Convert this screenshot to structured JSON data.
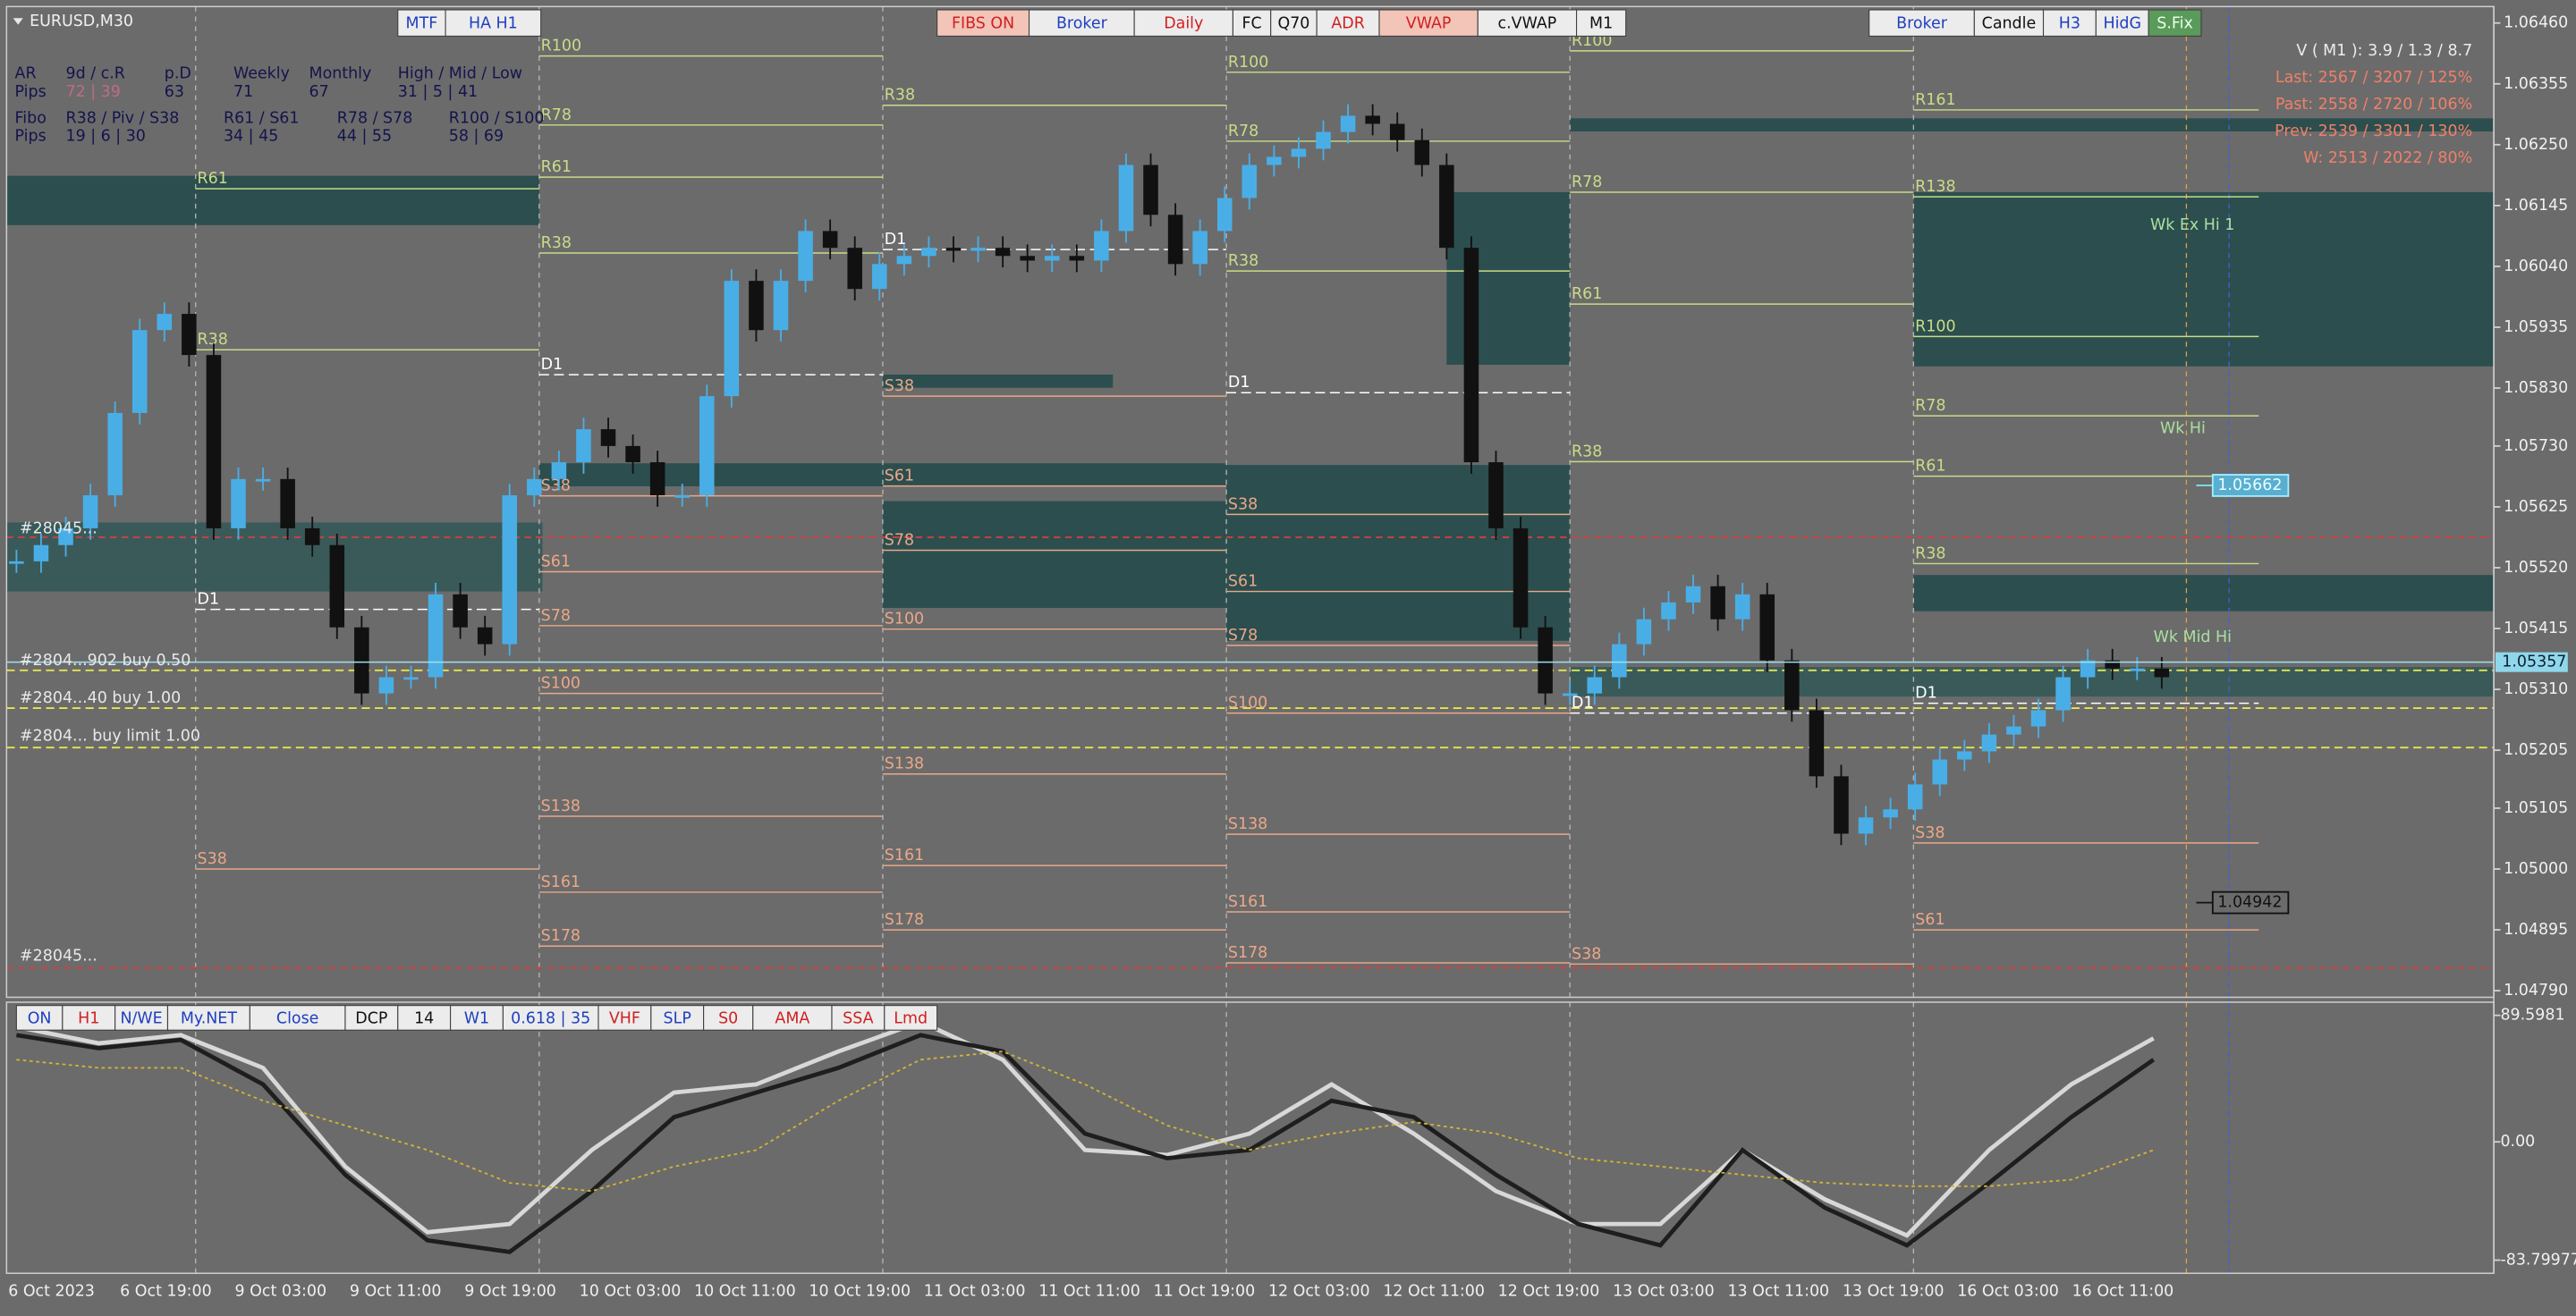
{
  "symbol": "EURUSD,M30",
  "toolbar_top_left": [
    "MTF",
    "HA H1"
  ],
  "toolbar_top": [
    "FIBS ON",
    "Broker",
    "Daily",
    "FC",
    "Q70",
    "ADR",
    "VWAP",
    "c.VWAP",
    "M1"
  ],
  "toolbar_top_right": [
    "Broker",
    "Candle",
    "H3",
    "HidG",
    "S.Fix"
  ],
  "toolbar_bottom": [
    "ON",
    "H1",
    "N/WE",
    "My.NET",
    "Close",
    "DCP",
    "14",
    "W1",
    "0.618 | 35",
    "VHF",
    "SLP",
    "S0",
    "AMA",
    "SSA",
    "Lmd"
  ],
  "stats": {
    "rows": [
      [
        "AR",
        "9d / c.R",
        "p.D",
        "Weekly",
        "Monthly",
        "High / Mid / Low"
      ],
      [
        "Pips",
        "72 | 39",
        63,
        71,
        67,
        "31 | 5 | 41"
      ],
      [
        "Fibo",
        "R38 / Piv / S38",
        "R61 / S61",
        "R78 / S78",
        "R100 / S100"
      ],
      [
        "Pips",
        "19 | 6 | 30",
        "34 | 45",
        "44 | 55",
        "58 | 69"
      ]
    ]
  },
  "info_panel": [
    "V ( M1 ): 3.9 / 1.3 / 8.7",
    "Last: 2567 / 3207 / 125%",
    "Past: 2558 / 2720 / 106%",
    "Prev: 2539 / 3301 / 130%",
    "W: 2513 / 2022 / 80%"
  ],
  "price_axis": {
    "ylim": [
      1.0479,
      1.0646
    ],
    "yticks": [
      {
        "value": 1.0646,
        "label": "1.06460"
      },
      {
        "value": 1.06355,
        "label": "1.06355"
      },
      {
        "value": 1.0625,
        "label": "1.06250"
      },
      {
        "value": 1.06145,
        "label": "1.06145"
      },
      {
        "value": 1.0604,
        "label": "1.06040"
      },
      {
        "value": 1.05935,
        "label": "1.05935"
      },
      {
        "value": 1.0583,
        "label": "1.05830"
      },
      {
        "value": 1.0573,
        "label": "1.05730"
      },
      {
        "value": 1.05625,
        "label": "1.05625"
      },
      {
        "value": 1.0552,
        "label": "1.05520"
      },
      {
        "value": 1.05415,
        "label": "1.05415"
      },
      {
        "value": 1.0531,
        "label": "1.05310"
      },
      {
        "value": 1.05205,
        "label": "1.05205"
      },
      {
        "value": 1.05105,
        "label": "1.05105"
      },
      {
        "value": 1.05,
        "label": "1.05000"
      },
      {
        "value": 1.04895,
        "label": "1.04895"
      },
      {
        "value": 1.0479,
        "label": "1.04790"
      }
    ],
    "current_price": 1.05357,
    "price_tags": [
      1.05662,
      1.04942
    ]
  },
  "orders": [
    "#2804...902 buy 0.50",
    "#2804...40 buy 1.00",
    "#2804... buy limit 1.00",
    "#28045...",
    "#28045..."
  ],
  "weekly_labels": [
    "Wk Ex Hi 1",
    "Wk Hi",
    "Wk Mid Hi"
  ],
  "pivot_days": [
    {
      "levels": [
        {
          "label": "R61",
          "value": 1.06174
        },
        {
          "label": "R38",
          "value": 1.05896
        },
        {
          "label": "D1",
          "value": 1.05448
        },
        {
          "label": "S38",
          "value": 1.05
        }
      ]
    },
    {
      "levels": [
        {
          "label": "R100",
          "value": 1.06403
        },
        {
          "label": "R78",
          "value": 1.06284
        },
        {
          "label": "R61",
          "value": 1.06194
        },
        {
          "label": "R38",
          "value": 1.06063
        },
        {
          "label": "D1",
          "value": 1.05853
        },
        {
          "label": "S38",
          "value": 1.05644
        },
        {
          "label": "S61",
          "value": 1.05513
        },
        {
          "label": "S78",
          "value": 1.0542
        },
        {
          "label": "S100",
          "value": 1.05303
        },
        {
          "label": "S138",
          "value": 1.05091
        },
        {
          "label": "S161",
          "value": 1.0496
        },
        {
          "label": "S178",
          "value": 1.04867
        }
      ]
    },
    {
      "levels": [
        {
          "label": "R38",
          "value": 1.06318
        },
        {
          "label": "D1",
          "value": 1.06069
        },
        {
          "label": "S38",
          "value": 1.05816
        },
        {
          "label": "S61",
          "value": 1.05661
        },
        {
          "label": "S78",
          "value": 1.0555
        },
        {
          "label": "S100",
          "value": 1.05414
        },
        {
          "label": "S138",
          "value": 1.05164
        },
        {
          "label": "S161",
          "value": 1.05006
        },
        {
          "label": "S178",
          "value": 1.04895
        }
      ]
    },
    {
      "levels": [
        {
          "label": "R100",
          "value": 1.06375
        },
        {
          "label": "R78",
          "value": 1.06256
        },
        {
          "label": "R38",
          "value": 1.06032
        },
        {
          "label": "D1",
          "value": 1.05822
        },
        {
          "label": "S38",
          "value": 1.05612
        },
        {
          "label": "S61",
          "value": 1.05479
        },
        {
          "label": "S78",
          "value": 1.05386
        },
        {
          "label": "S100",
          "value": 1.05269
        },
        {
          "label": "S138",
          "value": 1.0506
        },
        {
          "label": "S161",
          "value": 1.04926
        },
        {
          "label": "S178",
          "value": 1.04838
        }
      ]
    },
    {
      "levels": [
        {
          "label": "R100",
          "value": 1.06412
        },
        {
          "label": "R78",
          "value": 1.06168
        },
        {
          "label": "R61",
          "value": 1.05975
        },
        {
          "label": "R38",
          "value": 1.05703
        },
        {
          "label": "D1",
          "value": 1.05269
        },
        {
          "label": "S38",
          "value": 1.04836
        }
      ]
    },
    {
      "levels": [
        {
          "label": "R161",
          "value": 1.0631
        },
        {
          "label": "R138",
          "value": 1.0616
        },
        {
          "label": "R100",
          "value": 1.05919
        },
        {
          "label": "R78",
          "value": 1.05782
        },
        {
          "label": "R61",
          "value": 1.05678
        },
        {
          "label": "R38",
          "value": 1.05527
        },
        {
          "label": "D1",
          "value": 1.05286
        },
        {
          "label": "S38",
          "value": 1.05045
        },
        {
          "label": "S61",
          "value": 1.04895
        }
      ]
    }
  ],
  "price_series": {
    "type": "candlestick",
    "up_color": "#4aaee6",
    "down_color": "#111111",
    "closes": [
      1.05531,
      1.05559,
      1.05588,
      1.05645,
      1.05787,
      1.0593,
      1.05958,
      1.05887,
      1.05588,
      1.05673,
      1.05673,
      1.05588,
      1.05559,
      1.05417,
      1.05303,
      1.05331,
      1.05331,
      1.05474,
      1.05417,
      1.05388,
      1.05645,
      1.05673,
      1.05702,
      1.05759,
      1.0573,
      1.05702,
      1.05645,
      1.05645,
      1.05816,
      1.06015,
      1.0593,
      1.06015,
      1.06101,
      1.06072,
      1.06001,
      1.06044,
      1.06058,
      1.06072,
      1.06067,
      1.06072,
      1.06058,
      1.0605,
      1.06058,
      1.0605,
      1.06101,
      1.06215,
      1.06129,
      1.06044,
      1.06101,
      1.06158,
      1.06215,
      1.06229,
      1.06243,
      1.06272,
      1.063,
      1.06286,
      1.06258,
      1.06215,
      1.06072,
      1.05702,
      1.05588,
      1.05417,
      1.05303,
      1.05303,
      1.05331,
      1.05388,
      1.05431,
      1.0546,
      1.05488,
      1.05431,
      1.05474,
      1.0536,
      1.05274,
      1.0516,
      1.05061,
      1.05089,
      1.05103,
      1.05146,
      1.05189,
      1.05203,
      1.05232,
      1.05246,
      1.05274,
      1.05331,
      1.0536,
      1.05346,
      1.05346,
      1.05331
    ]
  },
  "oscillator": {
    "ylim": [
      -83.79977,
      89.5981
    ],
    "yticks": [
      89.5981,
      {
        "value": 0,
        "label": "0.00"
      },
      -83.79977
    ],
    "series": [
      {
        "color": "#d8d8d8",
        "values": [
          81.5,
          69.8,
          75.6,
          52.4,
          -17.5,
          -64.0,
          -58.2,
          -5.8,
          34.9,
          40.7,
          64.0,
          85.0,
          58.2,
          -5.8,
          -9.3,
          5.8,
          40.7,
          5.8,
          -34.9,
          -58.2,
          -58.2,
          -5.8,
          -40.7,
          -66.3,
          -5.8,
          40.7,
          73.3
        ]
      },
      {
        "color": "#1e1e1e",
        "values": [
          75.6,
          66.3,
          72.2,
          40.7,
          -23.3,
          -69.8,
          -78.0,
          -34.9,
          17.5,
          34.9,
          52.4,
          75.6,
          64.0,
          5.8,
          -11.6,
          -5.8,
          29.1,
          17.5,
          -23.3,
          -58.2,
          -73.3,
          -5.8,
          -46.6,
          -73.3,
          -29.1,
          17.5,
          58.2
        ]
      },
      {
        "color": "#d2b436",
        "values": [
          58.2,
          52.4,
          52.4,
          29.1,
          11.6,
          -5.8,
          -29.1,
          -34.9,
          -17.5,
          -5.8,
          29.1,
          58.2,
          64.0,
          40.7,
          11.6,
          -5.8,
          5.8,
          14.0,
          5.8,
          -11.6,
          -17.5,
          -23.3,
          -29.1,
          -31.4,
          -31.4,
          -26.8,
          -5.8
        ]
      }
    ]
  },
  "time_axis": [
    "6 Oct 2023",
    "6 Oct 19:00",
    "9 Oct 03:00",
    "9 Oct 11:00",
    "9 Oct 19:00",
    "10 Oct 03:00",
    "10 Oct 11:00",
    "10 Oct 19:00",
    "11 Oct 03:00",
    "11 Oct 11:00",
    "11 Oct 19:00",
    "12 Oct 03:00",
    "12 Oct 11:00",
    "12 Oct 19:00",
    "13 Oct 03:00",
    "13 Oct 11:00",
    "13 Oct 19:00",
    "16 Oct 03:00",
    "16 Oct 11:00"
  ]
}
